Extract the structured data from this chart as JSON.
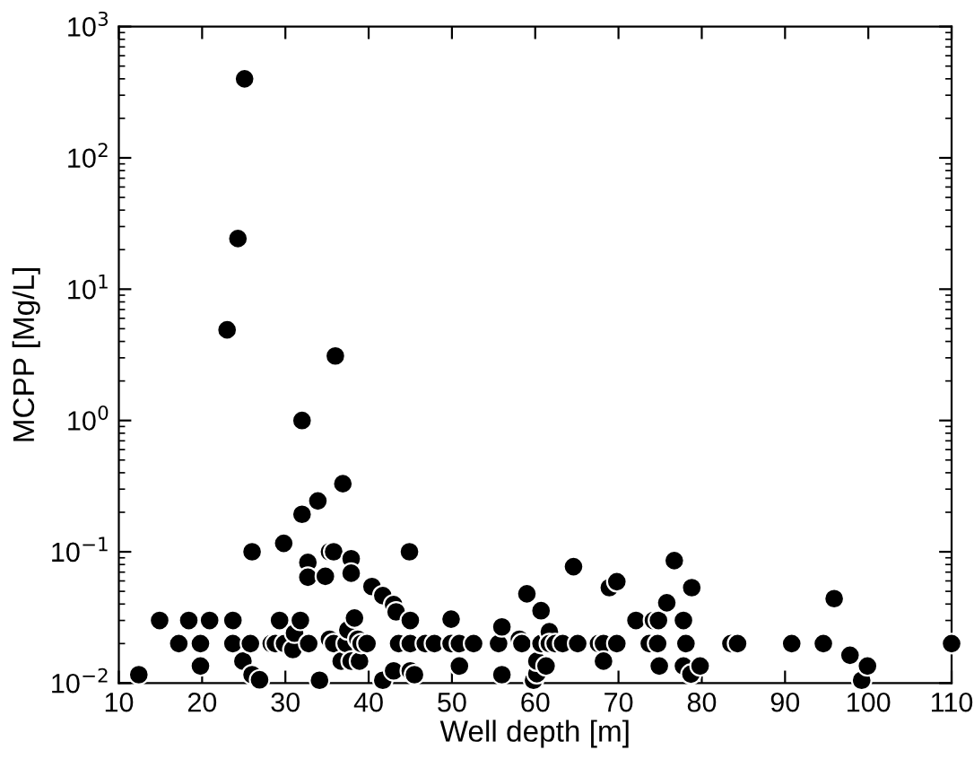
{
  "chart_data": {
    "type": "scatter",
    "xlabel": "Well depth [m]",
    "ylabel": "MCPP [Mg/L]",
    "log": "y",
    "xlim": [
      10,
      110
    ],
    "ylim": [
      0.01,
      1000
    ],
    "xticks": [
      10,
      20,
      30,
      40,
      50,
      60,
      70,
      80,
      90,
      100,
      110
    ],
    "yticks": [
      {
        "value": 0.01,
        "label": "10$^{−2}$"
      },
      {
        "value": 0.1,
        "label": "10$^{−1}$"
      },
      {
        "value": 1,
        "label": "10$^{0}$"
      },
      {
        "value": 10,
        "label": "10$^{1}$"
      },
      {
        "value": 100,
        "label": "10$^{2}$"
      },
      {
        "value": 1000,
        "label": "10$^{3}$"
      }
    ],
    "grid": false,
    "legend": false,
    "marker": "circle",
    "series": [
      {
        "color": "#000000",
        "x": [
          12.4,
          14.9,
          17.2,
          18.4,
          19.8,
          19.8,
          20.9,
          23.7,
          23.7,
          24.9,
          25.8,
          26.0,
          26.0,
          26.9,
          28.3,
          28.8,
          29.9,
          29.3,
          29.8,
          30.9,
          31.1,
          31.8,
          32.0,
          32.7,
          32.7,
          32.8,
          33.9,
          34.1,
          34.8,
          35.3,
          35.8,
          35.3,
          35.8,
          36.9,
          36.7,
          37.3,
          37.5,
          37.9,
          37.9,
          37.9,
          38.3,
          38.7,
          38.9,
          39.1,
          39.8,
          40.4,
          41.7,
          41.7,
          43.0,
          43.0,
          43.3,
          43.6,
          44.9,
          45.0,
          45.0,
          45.0,
          45.5,
          46.8,
          47.9,
          49.9,
          49.9,
          50.9,
          50.9,
          52.6,
          55.6,
          56.0,
          56.0,
          58.1,
          58.4,
          59.0,
          59.8,
          60.2,
          60.2,
          60.7,
          60.7,
          61.3,
          61.7,
          61.7,
          62.4,
          63.3,
          65.1,
          64.6,
          67.6,
          68.2,
          68.2,
          68.9,
          69.8,
          69.8,
          72.1,
          73.7,
          74.7,
          74.2,
          74.8,
          74.9,
          75.8,
          76.7,
          77.8,
          78.1,
          77.8,
          78.8,
          78.7,
          79.8,
          83.5,
          84.3,
          90.8,
          94.6,
          110,
          95.9,
          97.8,
          99.2,
          99.9,
          25.1,
          24.3,
          23.0,
          36.0,
          32.0
        ],
        "values": [
          0.0116,
          0.03,
          0.02,
          0.03,
          0.02,
          0.0135,
          0.03,
          0.03,
          0.02,
          0.0147,
          0.02,
          0.0116,
          0.1,
          0.0106,
          0.02,
          0.02,
          0.02,
          0.03,
          0.116,
          0.018,
          0.024,
          0.03,
          0.193,
          0.083,
          0.064,
          0.02,
          0.244,
          0.0105,
          0.065,
          0.1,
          0.1,
          0.0216,
          0.02,
          0.33,
          0.0147,
          0.02,
          0.0254,
          0.0886,
          0.0687,
          0.0147,
          0.0313,
          0.0216,
          0.0147,
          0.02,
          0.02,
          0.0544,
          0.0464,
          0.0105,
          0.0124,
          0.0396,
          0.0349,
          0.02,
          0.1,
          0.03,
          0.02,
          0.0124,
          0.0116,
          0.02,
          0.02,
          0.0307,
          0.02,
          0.02,
          0.0135,
          0.02,
          0.02,
          0.0268,
          0.0116,
          0.0216,
          0.02,
          0.0479,
          0.0105,
          0.0118,
          0.0147,
          0.0356,
          0.02,
          0.0135,
          0.0246,
          0.02,
          0.02,
          0.02,
          0.02,
          0.0771,
          0.02,
          0.02,
          0.0147,
          0.0533,
          0.0592,
          0.02,
          0.03,
          0.02,
          0.02,
          0.03,
          0.03,
          0.0135,
          0.0409,
          0.0857,
          0.03,
          0.02,
          0.0135,
          0.0533,
          0.0117,
          0.0135,
          0.02,
          0.02,
          0.02,
          0.02,
          0.02,
          0.044,
          0.0163,
          0.0105,
          0.0135,
          400,
          24.3,
          4.9,
          3.1,
          1.0
        ]
      }
    ]
  }
}
